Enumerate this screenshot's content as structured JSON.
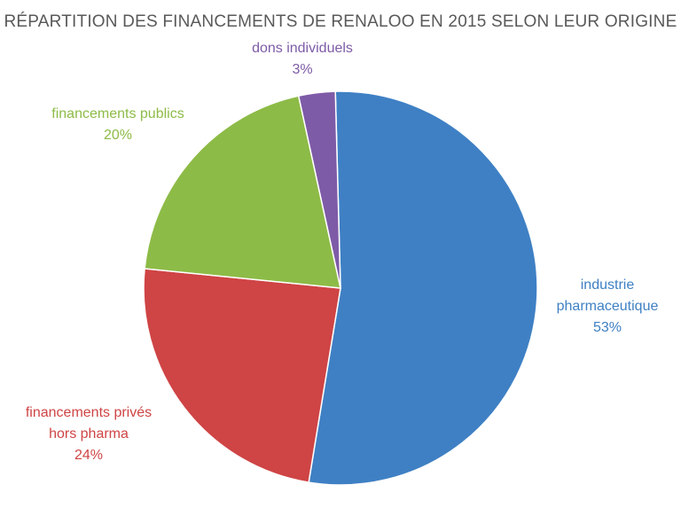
{
  "chart_data": {
    "type": "pie",
    "title": "RÉPARTITION DES FINANCEMENTS DE RENALOO EN 2015 SELON LEUR ORIGINE",
    "slices": [
      {
        "id": "industrie",
        "label_lines": [
          "industrie",
          "pharmaceutique"
        ],
        "value": 53,
        "value_label": "53%",
        "color": "#3f80c4"
      },
      {
        "id": "prives",
        "label_lines": [
          "financements privés",
          "hors pharma"
        ],
        "value": 24,
        "value_label": "24%",
        "color": "#cf4445"
      },
      {
        "id": "publics",
        "label_lines": [
          "financements publics"
        ],
        "value": 20,
        "value_label": "20%",
        "color": "#8dbb47"
      },
      {
        "id": "dons",
        "label_lines": [
          "dons individuels"
        ],
        "value": 3,
        "value_label": "3%",
        "color": "#7e5ba7"
      }
    ],
    "legend": false
  }
}
